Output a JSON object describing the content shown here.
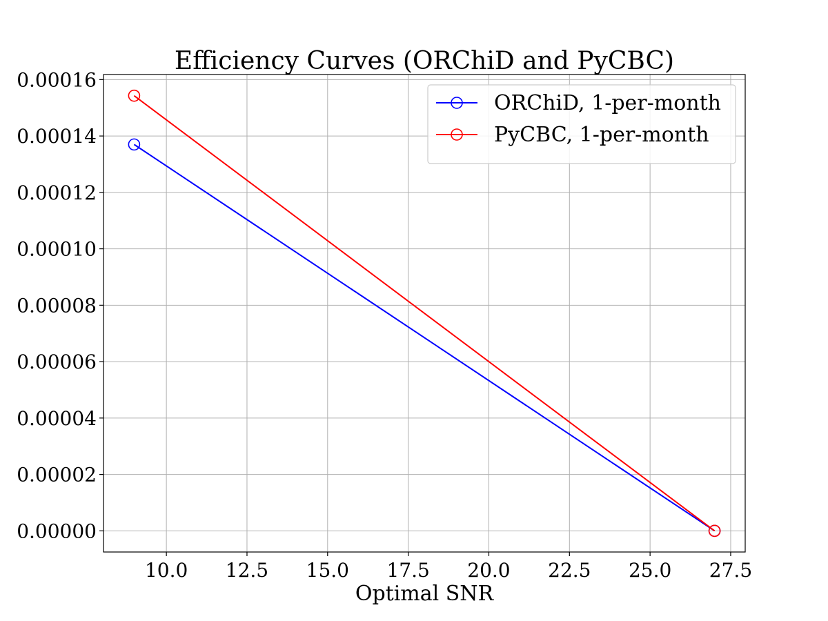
{
  "chart_data": {
    "type": "line",
    "title": "Efficiency Curves (ORChiD and PyCBC)",
    "xlabel": "Optimal SNR",
    "ylabel": "",
    "xlim": [
      8.05,
      27.95
    ],
    "ylim": [
      -7.5e-06,
      0.0001618
    ],
    "x_ticks": [
      10.0,
      12.5,
      15.0,
      17.5,
      20.0,
      22.5,
      25.0,
      27.5
    ],
    "x_tick_labels": [
      "10.0",
      "12.5",
      "15.0",
      "17.5",
      "20.0",
      "22.5",
      "25.0",
      "27.5"
    ],
    "y_ticks": [
      0,
      2e-05,
      4e-05,
      6e-05,
      8e-05,
      0.0001,
      0.00012,
      0.00014,
      0.00016
    ],
    "y_tick_labels": [
      "0.00000",
      "0.00002",
      "0.00004",
      "0.00006",
      "0.00008",
      "0.00010",
      "0.00012",
      "0.00014",
      "0.00016"
    ],
    "grid": true,
    "legend_position": "top-right",
    "series": [
      {
        "name": "ORChiD, 1-per-month",
        "color": "#0000ff",
        "marker": "open-circle",
        "x": [
          9,
          27
        ],
        "y": [
          0.000137,
          0
        ]
      },
      {
        "name": "PyCBC, 1-per-month",
        "color": "#ff0000",
        "marker": "open-circle",
        "x": [
          9,
          27
        ],
        "y": [
          0.0001543,
          0
        ]
      }
    ]
  }
}
